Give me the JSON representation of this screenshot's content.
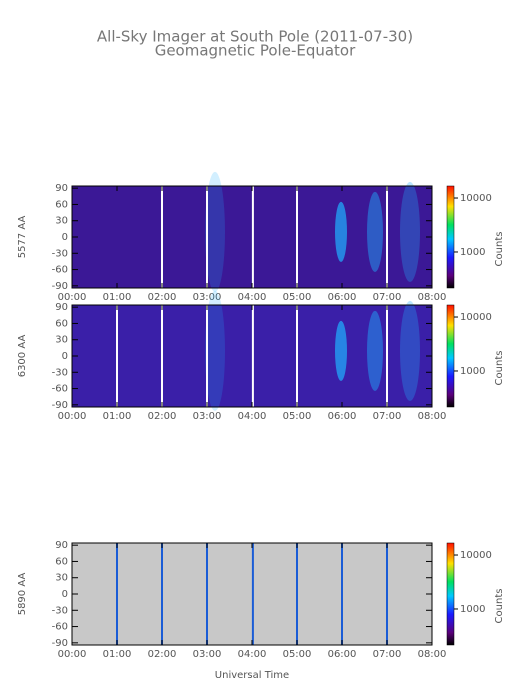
{
  "title": "All-Sky Imager at South Pole (2011-07-30)",
  "subtitle": "Geomagnetic Pole-Equator",
  "x_label": "Universal Time",
  "chart_data": [
    {
      "type": "keogram",
      "y_label": "5577 AA",
      "background": "#3b1896",
      "xlim": [
        0,
        8
      ],
      "ylim": [
        -94,
        94
      ],
      "xticks": [
        {
          "value": 0,
          "label": "00:00"
        },
        {
          "value": 1,
          "label": "01:00"
        },
        {
          "value": 2,
          "label": "02:00"
        },
        {
          "value": 3,
          "label": "03:00"
        },
        {
          "value": 4,
          "label": "04:00"
        },
        {
          "value": 5,
          "label": "05:00"
        },
        {
          "value": 6,
          "label": "06:00"
        },
        {
          "value": 7,
          "label": "07:00"
        },
        {
          "value": 8,
          "label": "08:00"
        }
      ],
      "yticks": [
        -90,
        -60,
        -30,
        0,
        30,
        60,
        90
      ],
      "gaps": [
        2,
        3,
        4.02,
        5,
        7
      ],
      "gap_color": "#ffffff",
      "color_label": "Counts",
      "clim": [
        215,
        16700
      ],
      "cticks": [
        1000,
        10000
      ],
      "log_color": true
    },
    {
      "type": "keogram",
      "y_label": "6300 AA",
      "background": "#3a1fa8",
      "xlim": [
        0,
        8
      ],
      "ylim": [
        -94,
        94
      ],
      "xticks": [
        {
          "value": 0,
          "label": "00:00"
        },
        {
          "value": 1,
          "label": "01:00"
        },
        {
          "value": 2,
          "label": "02:00"
        },
        {
          "value": 3,
          "label": "03:00"
        },
        {
          "value": 4,
          "label": "04:00"
        },
        {
          "value": 5,
          "label": "05:00"
        },
        {
          "value": 6,
          "label": "06:00"
        },
        {
          "value": 7,
          "label": "07:00"
        },
        {
          "value": 8,
          "label": "08:00"
        }
      ],
      "yticks": [
        -90,
        -60,
        -30,
        0,
        30,
        60,
        90
      ],
      "gaps": [
        1,
        2,
        3,
        4.02,
        5,
        7
      ],
      "gap_color": "#ffffff",
      "color_label": "Counts",
      "clim": [
        215,
        16700
      ],
      "cticks": [
        1000,
        10000
      ],
      "log_color": true
    },
    {
      "type": "keogram",
      "y_label": "5890 AA",
      "background": "#c8c8c8",
      "xlim": [
        0,
        8
      ],
      "ylim": [
        -94,
        94
      ],
      "xticks": [
        {
          "value": 0,
          "label": "00:00"
        },
        {
          "value": 1,
          "label": "01:00"
        },
        {
          "value": 2,
          "label": "02:00"
        },
        {
          "value": 3,
          "label": "03:00"
        },
        {
          "value": 4,
          "label": "04:00"
        },
        {
          "value": 5,
          "label": "05:00"
        },
        {
          "value": 6,
          "label": "06:00"
        },
        {
          "value": 7,
          "label": "07:00"
        },
        {
          "value": 8,
          "label": "08:00"
        }
      ],
      "yticks": [
        -90,
        -60,
        -30,
        0,
        30,
        60,
        90
      ],
      "gaps": [
        1,
        2,
        3,
        4.02,
        5,
        6,
        7
      ],
      "gap_color": "#1a5cd6",
      "color_label": "Counts",
      "clim": [
        215,
        16700
      ],
      "cticks": [
        1000,
        10000
      ],
      "log_color": true
    }
  ]
}
